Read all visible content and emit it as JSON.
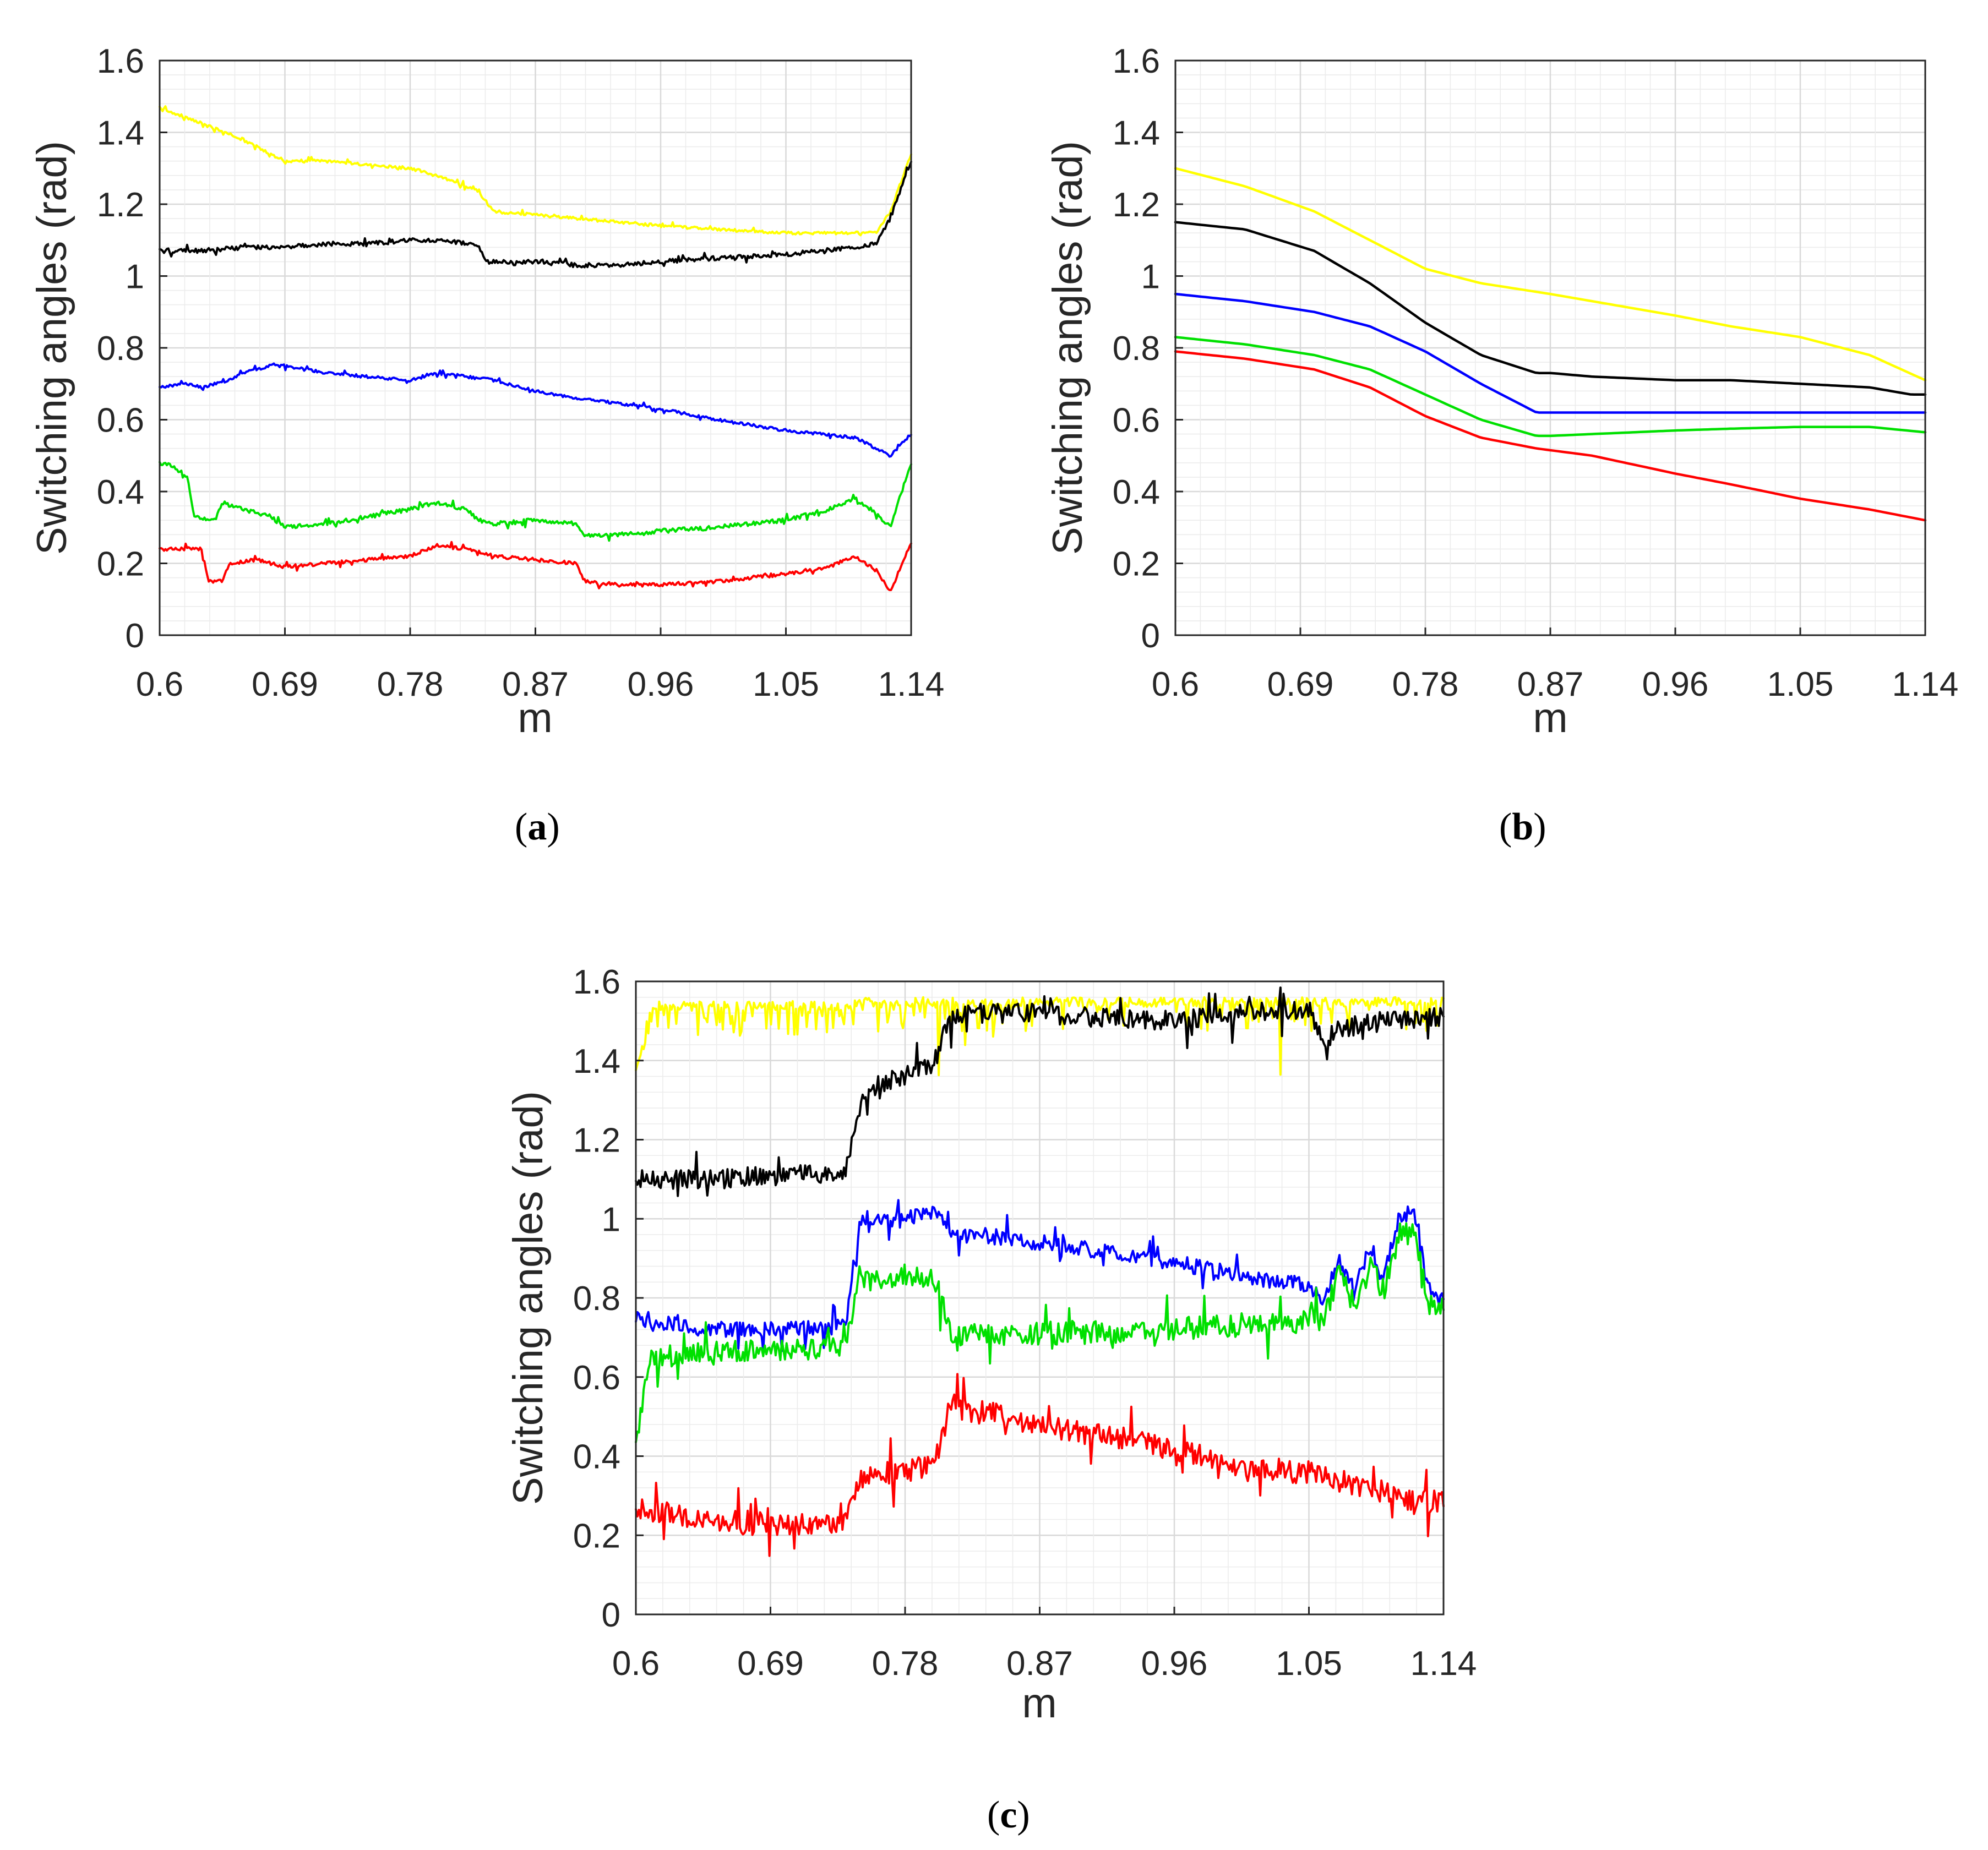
{
  "chart_data": [
    {
      "id": "a",
      "type": "line",
      "caption": "a",
      "xlabel": "m",
      "ylabel": "Switching angles (rad)",
      "xlim": [
        0.6,
        1.14
      ],
      "ylim": [
        0,
        1.6
      ],
      "xticks": [
        "0.6",
        "0.69",
        "0.78",
        "0.87",
        "0.96",
        "1.05",
        "1.14"
      ],
      "yticks": [
        "0",
        "0.2",
        "0.4",
        "0.6",
        "0.8",
        "1",
        "1.2",
        "1.4",
        "1.6"
      ],
      "grid": true,
      "series": [
        {
          "name": "yellow",
          "color": "#ffff00",
          "noise": 0.004,
          "x": [
            0.6,
            0.62,
            0.64,
            0.66,
            0.68,
            0.69,
            0.72,
            0.75,
            0.78,
            0.8,
            0.82,
            0.83,
            0.84,
            0.87,
            0.9,
            0.93,
            0.96,
            1.0,
            1.05,
            1.1,
            1.115,
            1.125,
            1.14
          ],
          "y": [
            1.47,
            1.44,
            1.41,
            1.38,
            1.34,
            1.32,
            1.32,
            1.31,
            1.3,
            1.28,
            1.25,
            1.23,
            1.18,
            1.17,
            1.16,
            1.15,
            1.14,
            1.13,
            1.12,
            1.12,
            1.12,
            1.18,
            1.34
          ]
        },
        {
          "name": "black",
          "color": "#000000",
          "noise": 0.006,
          "x": [
            0.6,
            0.63,
            0.66,
            0.69,
            0.72,
            0.75,
            0.78,
            0.8,
            0.82,
            0.83,
            0.835,
            0.87,
            0.9,
            0.93,
            0.96,
            1.0,
            1.05,
            1.1,
            1.115,
            1.125,
            1.14
          ],
          "y": [
            1.07,
            1.07,
            1.08,
            1.08,
            1.09,
            1.09,
            1.1,
            1.1,
            1.09,
            1.08,
            1.04,
            1.04,
            1.03,
            1.03,
            1.04,
            1.05,
            1.06,
            1.08,
            1.09,
            1.16,
            1.32
          ]
        },
        {
          "name": "blue",
          "color": "#0000ff",
          "noise": 0.004,
          "x": [
            0.6,
            0.62,
            0.63,
            0.65,
            0.66,
            0.68,
            0.69,
            0.72,
            0.75,
            0.78,
            0.8,
            0.84,
            0.87,
            0.9,
            0.96,
            1.0,
            1.05,
            1.1,
            1.115,
            1.125,
            1.14
          ],
          "y": [
            0.69,
            0.7,
            0.69,
            0.71,
            0.73,
            0.75,
            0.75,
            0.73,
            0.72,
            0.71,
            0.73,
            0.71,
            0.68,
            0.66,
            0.63,
            0.6,
            0.57,
            0.55,
            0.52,
            0.5,
            0.56
          ]
        },
        {
          "name": "green",
          "color": "#00e000",
          "noise": 0.006,
          "x": [
            0.6,
            0.61,
            0.62,
            0.625,
            0.64,
            0.645,
            0.66,
            0.68,
            0.69,
            0.72,
            0.75,
            0.78,
            0.8,
            0.82,
            0.83,
            0.84,
            0.87,
            0.9,
            0.905,
            0.93,
            0.96,
            1.0,
            1.05,
            1.08,
            1.1,
            1.115,
            1.125,
            1.14
          ],
          "y": [
            0.48,
            0.47,
            0.44,
            0.33,
            0.32,
            0.37,
            0.35,
            0.33,
            0.3,
            0.31,
            0.33,
            0.35,
            0.37,
            0.35,
            0.32,
            0.31,
            0.32,
            0.31,
            0.28,
            0.28,
            0.29,
            0.3,
            0.32,
            0.35,
            0.38,
            0.34,
            0.3,
            0.48
          ]
        },
        {
          "name": "red",
          "color": "#ff0000",
          "noise": 0.005,
          "x": [
            0.6,
            0.62,
            0.63,
            0.635,
            0.645,
            0.65,
            0.67,
            0.68,
            0.69,
            0.72,
            0.75,
            0.78,
            0.8,
            0.82,
            0.84,
            0.87,
            0.9,
            0.905,
            0.93,
            0.96,
            1.0,
            1.05,
            1.08,
            1.1,
            1.115,
            1.125,
            1.14
          ],
          "y": [
            0.24,
            0.24,
            0.24,
            0.15,
            0.15,
            0.2,
            0.21,
            0.2,
            0.19,
            0.2,
            0.21,
            0.22,
            0.25,
            0.24,
            0.22,
            0.21,
            0.2,
            0.15,
            0.14,
            0.14,
            0.15,
            0.17,
            0.19,
            0.22,
            0.18,
            0.12,
            0.26
          ]
        }
      ]
    },
    {
      "id": "b",
      "type": "line",
      "caption": "b",
      "xlabel": "m",
      "ylabel": "Switching angles (rad)",
      "xlim": [
        0.6,
        1.14
      ],
      "ylim": [
        0,
        1.6
      ],
      "xticks": [
        "0.6",
        "0.69",
        "0.78",
        "0.87",
        "0.96",
        "1.05",
        "1.14"
      ],
      "yticks": [
        "0",
        "0.2",
        "0.4",
        "0.6",
        "0.8",
        "1",
        "1.2",
        "1.4",
        "1.6"
      ],
      "grid": true,
      "series": [
        {
          "name": "yellow",
          "color": "#ffff00",
          "noise": 0,
          "x": [
            0.6,
            0.65,
            0.7,
            0.75,
            0.78,
            0.82,
            0.87,
            0.9,
            0.96,
            1.0,
            1.05,
            1.1,
            1.14
          ],
          "y": [
            1.3,
            1.25,
            1.18,
            1.08,
            1.02,
            0.98,
            0.95,
            0.93,
            0.89,
            0.86,
            0.83,
            0.78,
            0.71
          ]
        },
        {
          "name": "black",
          "color": "#000000",
          "noise": 0,
          "x": [
            0.6,
            0.65,
            0.7,
            0.74,
            0.78,
            0.82,
            0.86,
            0.87,
            0.9,
            0.96,
            1.0,
            1.05,
            1.1,
            1.13,
            1.14
          ],
          "y": [
            1.15,
            1.13,
            1.07,
            0.98,
            0.87,
            0.78,
            0.73,
            0.73,
            0.72,
            0.71,
            0.71,
            0.7,
            0.69,
            0.67,
            0.67
          ]
        },
        {
          "name": "blue",
          "color": "#0000ff",
          "noise": 0,
          "x": [
            0.6,
            0.65,
            0.7,
            0.74,
            0.78,
            0.82,
            0.86,
            0.87,
            0.9,
            0.96,
            1.0,
            1.05,
            1.1,
            1.14
          ],
          "y": [
            0.95,
            0.93,
            0.9,
            0.86,
            0.79,
            0.7,
            0.62,
            0.62,
            0.62,
            0.62,
            0.62,
            0.62,
            0.62,
            0.62
          ]
        },
        {
          "name": "green",
          "color": "#00e000",
          "noise": 0,
          "x": [
            0.6,
            0.65,
            0.7,
            0.74,
            0.78,
            0.82,
            0.86,
            0.87,
            0.9,
            0.96,
            1.0,
            1.05,
            1.1,
            1.14
          ],
          "y": [
            0.83,
            0.81,
            0.78,
            0.74,
            0.67,
            0.6,
            0.555,
            0.555,
            0.56,
            0.57,
            0.575,
            0.58,
            0.58,
            0.565
          ]
        },
        {
          "name": "red",
          "color": "#ff0000",
          "noise": 0,
          "x": [
            0.6,
            0.65,
            0.7,
            0.74,
            0.78,
            0.82,
            0.86,
            0.87,
            0.9,
            0.96,
            1.0,
            1.05,
            1.1,
            1.14
          ],
          "y": [
            0.79,
            0.77,
            0.74,
            0.69,
            0.61,
            0.55,
            0.52,
            0.515,
            0.5,
            0.45,
            0.42,
            0.38,
            0.35,
            0.32
          ]
        }
      ]
    },
    {
      "id": "c",
      "type": "line",
      "caption": "c",
      "xlabel": "m",
      "ylabel": "Switching angles (rad)",
      "xlim": [
        0.6,
        1.14
      ],
      "ylim": [
        0,
        1.6
      ],
      "xticks": [
        "0.6",
        "0.69",
        "0.78",
        "0.87",
        "0.96",
        "1.05",
        "1.14"
      ],
      "yticks": [
        "0",
        "0.2",
        "0.4",
        "0.6",
        "0.8",
        "1",
        "1.2",
        "1.4",
        "1.6"
      ],
      "grid": true,
      "series": [
        {
          "name": "yellow",
          "color": "#ffff00",
          "noise": 0.04,
          "noiseDir": "down",
          "cap": 1.56,
          "x": [
            0.6,
            0.61,
            0.65,
            0.7,
            0.74,
            0.75,
            0.8,
            0.87,
            0.96,
            1.05,
            1.1,
            1.14
          ],
          "y": [
            1.38,
            1.55,
            1.55,
            1.55,
            1.55,
            1.56,
            1.56,
            1.56,
            1.56,
            1.56,
            1.56,
            1.56
          ]
        },
        {
          "name": "black",
          "color": "#000000",
          "noise": 0.025,
          "x": [
            0.6,
            0.65,
            0.7,
            0.74,
            0.75,
            0.76,
            0.78,
            0.8,
            0.81,
            0.82,
            0.87,
            0.9,
            0.96,
            1.0,
            1.05,
            1.06,
            1.07,
            1.1,
            1.14
          ],
          "y": [
            1.1,
            1.1,
            1.11,
            1.12,
            1.28,
            1.34,
            1.36,
            1.4,
            1.5,
            1.52,
            1.52,
            1.51,
            1.5,
            1.52,
            1.53,
            1.45,
            1.48,
            1.5,
            1.51
          ]
        },
        {
          "name": "blue",
          "color": "#0000ff",
          "noise": 0.02,
          "x": [
            0.6,
            0.65,
            0.7,
            0.74,
            0.75,
            0.76,
            0.78,
            0.8,
            0.81,
            0.87,
            0.96,
            1.0,
            1.05,
            1.06,
            1.07,
            1.08,
            1.09,
            1.1,
            1.11,
            1.12,
            1.13,
            1.14
          ],
          "y": [
            0.75,
            0.72,
            0.72,
            0.73,
            1.0,
            1.0,
            1.0,
            1.02,
            0.97,
            0.94,
            0.89,
            0.86,
            0.83,
            0.8,
            0.9,
            0.82,
            0.92,
            0.85,
            1.0,
            1.02,
            0.82,
            0.8
          ]
        },
        {
          "name": "green",
          "color": "#00e000",
          "noise": 0.03,
          "x": [
            0.6,
            0.61,
            0.65,
            0.7,
            0.74,
            0.75,
            0.76,
            0.78,
            0.8,
            0.81,
            0.87,
            0.96,
            1.0,
            1.05,
            1.06,
            1.07,
            1.08,
            1.09,
            1.1,
            1.11,
            1.12,
            1.13,
            1.14
          ],
          "y": [
            0.44,
            0.65,
            0.66,
            0.67,
            0.68,
            0.86,
            0.84,
            0.86,
            0.85,
            0.71,
            0.71,
            0.72,
            0.73,
            0.74,
            0.74,
            0.86,
            0.78,
            0.88,
            0.82,
            0.95,
            0.97,
            0.79,
            0.78
          ]
        },
        {
          "name": "red",
          "color": "#ff0000",
          "noise": 0.03,
          "x": [
            0.6,
            0.65,
            0.7,
            0.74,
            0.75,
            0.76,
            0.78,
            0.8,
            0.81,
            0.82,
            0.87,
            0.96,
            1.0,
            1.05,
            1.07,
            1.08,
            1.1,
            1.12,
            1.14
          ],
          "y": [
            0.27,
            0.23,
            0.23,
            0.23,
            0.34,
            0.36,
            0.36,
            0.38,
            0.53,
            0.52,
            0.48,
            0.42,
            0.37,
            0.36,
            0.34,
            0.33,
            0.31,
            0.28,
            0.29
          ]
        }
      ]
    }
  ]
}
